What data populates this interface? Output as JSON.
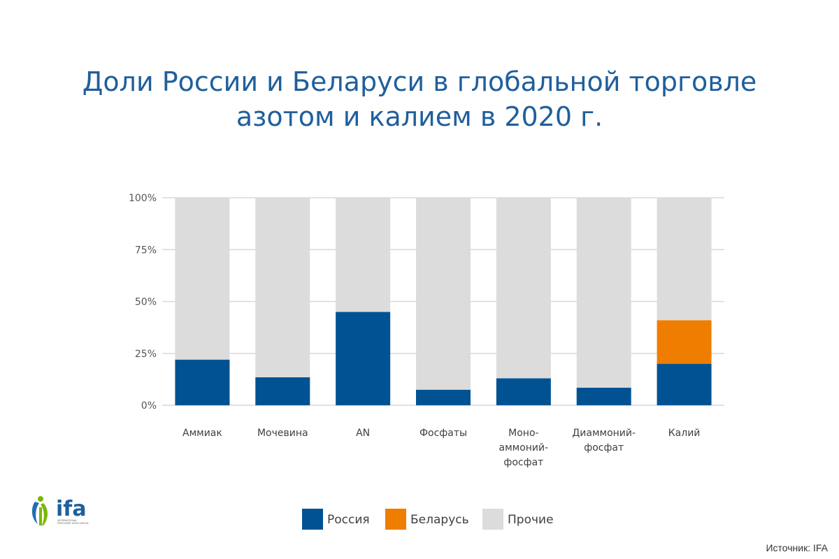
{
  "title_line1": "Доли России и Беларуси в глобальной торговле",
  "title_line2": "азотом и калием в 2020 г.",
  "source": "Источник: IFA",
  "logo": {
    "text": "ifa",
    "subtext": "INTERNATIONAL FERTILIZER ASSOCIATION"
  },
  "colors": {
    "russia": "#005293",
    "belarus": "#ef7d00",
    "other": "#dcdcdc",
    "title": "#1f5f9c",
    "grid": "#d9d9d9"
  },
  "chart_data": {
    "type": "bar",
    "stacked": true,
    "title": "Доли России и Беларуси в глобальной торговле азотом и калием в 2020 г.",
    "categories": [
      "Аммиак",
      "Мочевина",
      "AN",
      "Фосфаты",
      "Моно-аммоний-фосфат",
      "Диаммоний-фосфат",
      "Калий"
    ],
    "category_lines": [
      [
        "Аммиак"
      ],
      [
        "Мочевина"
      ],
      [
        "AN"
      ],
      [
        "Фосфаты"
      ],
      [
        "Моно-",
        "аммоний-",
        "фосфат"
      ],
      [
        "Диаммоний-",
        "фосфат"
      ],
      [
        "Калий"
      ]
    ],
    "series": [
      {
        "name": "Россия",
        "color": "#005293",
        "values": [
          22,
          13.5,
          45,
          7.5,
          13,
          8.5,
          20
        ]
      },
      {
        "name": "Беларусь",
        "color": "#ef7d00",
        "values": [
          0,
          0,
          0,
          0,
          0,
          0,
          21
        ]
      },
      {
        "name": "Прочие",
        "color": "#dcdcdc",
        "values": [
          78,
          86.5,
          55,
          92.5,
          87,
          91.5,
          59
        ]
      }
    ],
    "yticks": [
      "0%",
      "25%",
      "50%",
      "75%",
      "100%"
    ],
    "ylim": [
      0,
      100
    ],
    "legend_position": "bottom",
    "grid": true
  }
}
